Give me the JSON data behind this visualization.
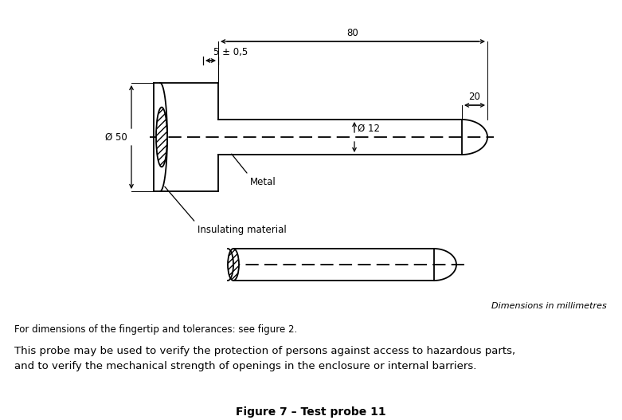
{
  "fig_width": 7.81,
  "fig_height": 5.27,
  "dpi": 100,
  "bg_color": "#ffffff",
  "line_color": "#000000",
  "title": "Figure 7 – Test probe 11",
  "dim_text_italic": "Dimensions in millimetres",
  "note1": "For dimensions of the fingertip and tolerances: see figure 2.",
  "note2": "This probe may be used to verify the protection of persons against access to hazardous parts,\nand to verify the mechanical strength of openings in the enclosure or internal barriers.",
  "label_5": "5 ± 0,5",
  "label_80": "80",
  "label_20": "20",
  "label_d50": "Ø 50",
  "label_d12": "Ø 12",
  "label_metal": "Metal",
  "label_insulating": "Insulating material"
}
